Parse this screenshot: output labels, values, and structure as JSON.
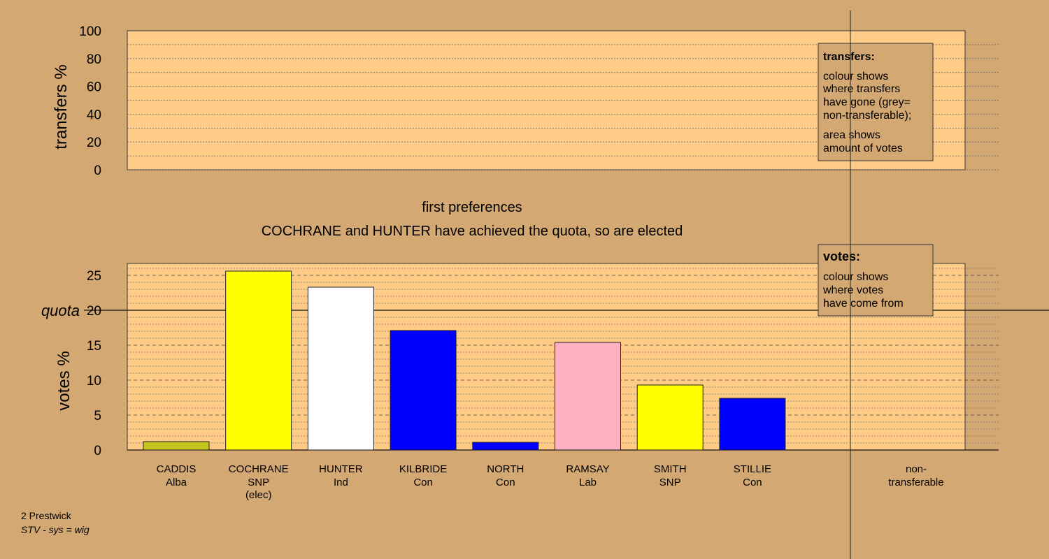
{
  "chart_data": [
    {
      "type": "bar",
      "panel": "transfers",
      "ylabel": "transfers %",
      "ylim": [
        0,
        100
      ],
      "yticks": [
        0,
        20,
        40,
        60,
        80,
        100
      ],
      "categories": [],
      "values": [],
      "legend": {
        "title": "transfers:",
        "lines1": [
          "colour shows",
          "where transfers",
          "have gone (grey=",
          "non-transferable);"
        ],
        "lines2": [
          "area shows",
          "amount of votes"
        ],
        "placement": "top-right"
      }
    },
    {
      "type": "bar",
      "panel": "votes",
      "title": "first preferences",
      "subtitle": "COCHRANE and HUNTER have achieved the quota, so are elected",
      "ylabel": "votes %",
      "ylim": [
        0,
        27
      ],
      "yticks": [
        0,
        5,
        10,
        15,
        20,
        25
      ],
      "quota": {
        "label": "quota",
        "value": 20
      },
      "categories": [
        {
          "name": "CADDIS",
          "party": "Alba",
          "note": ""
        },
        {
          "name": "COCHRANE",
          "party": "SNP",
          "note": "(elec)"
        },
        {
          "name": "HUNTER",
          "party": "Ind",
          "note": ""
        },
        {
          "name": "KILBRIDE",
          "party": "Con",
          "note": ""
        },
        {
          "name": "NORTH",
          "party": "Con",
          "note": ""
        },
        {
          "name": "RAMSAY",
          "party": "Lab",
          "note": ""
        },
        {
          "name": "SMITH",
          "party": "SNP",
          "note": ""
        },
        {
          "name": "STILLIE",
          "party": "Con",
          "note": ""
        }
      ],
      "values": [
        1.2,
        25.6,
        23.3,
        17.1,
        1.1,
        15.4,
        9.3,
        7.4
      ],
      "colors": [
        "#c4c41c",
        "#ffff00",
        "#ffffff",
        "#0000ff",
        "#0000ff",
        "#ffb1c4",
        "#ffff00",
        "#0000ff"
      ],
      "nontransferable_label": [
        "non-",
        "transferable"
      ],
      "legend": {
        "title": "votes:",
        "lines": [
          "colour shows",
          "where votes",
          "have come from"
        ],
        "placement": "top-right"
      }
    }
  ],
  "footer": {
    "line1": "2 Prestwick",
    "line2": "STV - sys = wig"
  },
  "colors": {
    "background": "#d4a873",
    "plot_area": "#ffcc88"
  }
}
